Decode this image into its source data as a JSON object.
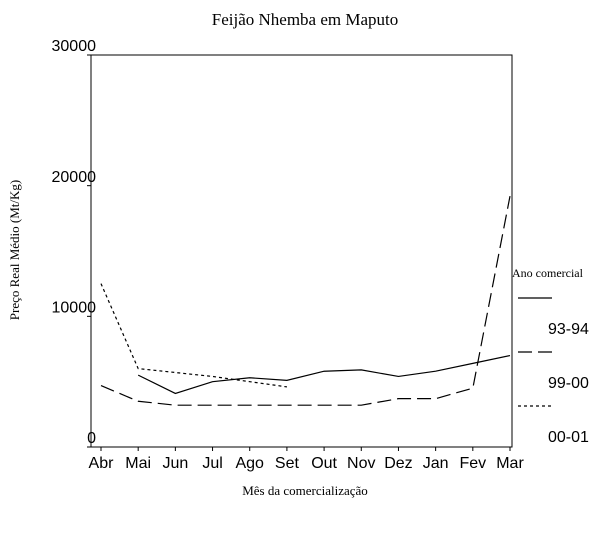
{
  "chart_data": {
    "type": "line",
    "title": "Feijão Nhemba em Maputo",
    "x_label": "Mês da comercialização",
    "y_label": "Preço Real Médio (Mt/Kg)",
    "legend_title": "Ano comercial",
    "categories": [
      "Abr",
      "Mai",
      "Jun",
      "Jul",
      "Ago",
      "Set",
      "Out",
      "Nov",
      "Dez",
      "Jan",
      "Fev",
      "Mar"
    ],
    "ylim": [
      0,
      30000
    ],
    "yticks": [
      0,
      10000,
      20000,
      30000
    ],
    "series": [
      {
        "name": "93-94",
        "color": "#000000",
        "linestyle": "solid",
        "values": [
          null,
          5500,
          4100,
          5000,
          5300,
          5100,
          5800,
          5900,
          5400,
          5800,
          6400,
          7000
        ]
      },
      {
        "name": "99-00",
        "color": "#000000",
        "linestyle": "dashed",
        "values": [
          4700,
          3500,
          3200,
          3200,
          3200,
          3200,
          3200,
          3200,
          3700,
          3700,
          4500,
          19200
        ]
      },
      {
        "name": "00-01",
        "color": "#000000",
        "linestyle": "dotted",
        "values": [
          12500,
          6000,
          5700,
          5400,
          5000,
          4600,
          null,
          null,
          null,
          null,
          null,
          null
        ]
      }
    ]
  }
}
